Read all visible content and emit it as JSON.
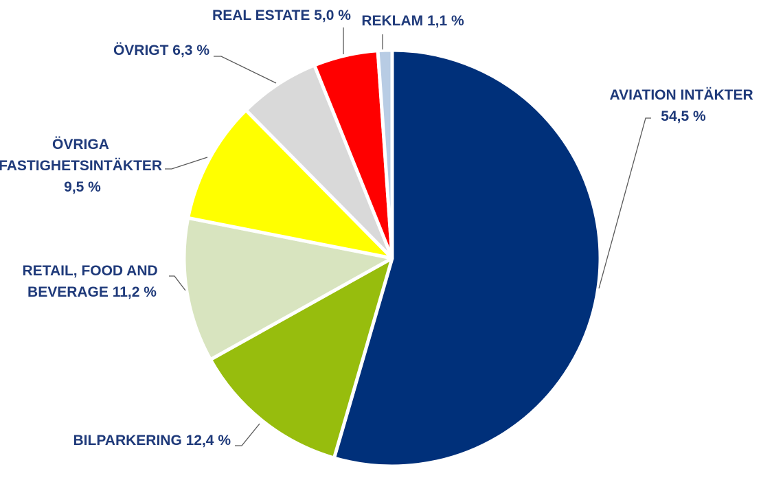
{
  "chart_data": {
    "type": "pie",
    "title": "",
    "slices": [
      {
        "key": "aviation",
        "label_lines": [
          "AVIATION INTÄKTER",
          "54,5 %"
        ],
        "value": 54.5,
        "color": "#00307a"
      },
      {
        "key": "bilparkering",
        "label_lines": [
          "BILPARKERING 12,4 %"
        ],
        "value": 12.4,
        "color": "#97bd0d"
      },
      {
        "key": "retail",
        "label_lines": [
          "RETAIL, FOOD AND",
          "BEVERAGE 11,2 %"
        ],
        "value": 11.2,
        "color": "#d8e4bf"
      },
      {
        "key": "ovriga-fastighet",
        "label_lines": [
          "ÖVRIGA",
          "FASTIGHETSINTÄKTER",
          "9,5 %"
        ],
        "value": 9.5,
        "color": "#ffff00"
      },
      {
        "key": "ovrigt",
        "label_lines": [
          "ÖVRIGT 6,3 %"
        ],
        "value": 6.3,
        "color": "#d9d9d9"
      },
      {
        "key": "real-estate",
        "label_lines": [
          "REAL ESTATE 5,0 %"
        ],
        "value": 5.0,
        "color": "#ff0000"
      },
      {
        "key": "reklam",
        "label_lines": [
          "REKLAM 1,1 %"
        ],
        "value": 1.1,
        "color": "#b8cce4"
      }
    ],
    "start_angle": "12 o'clock",
    "direction": "clockwise",
    "label_color": "#1f3a7a",
    "leader_color": "#595959",
    "legend": "none"
  }
}
